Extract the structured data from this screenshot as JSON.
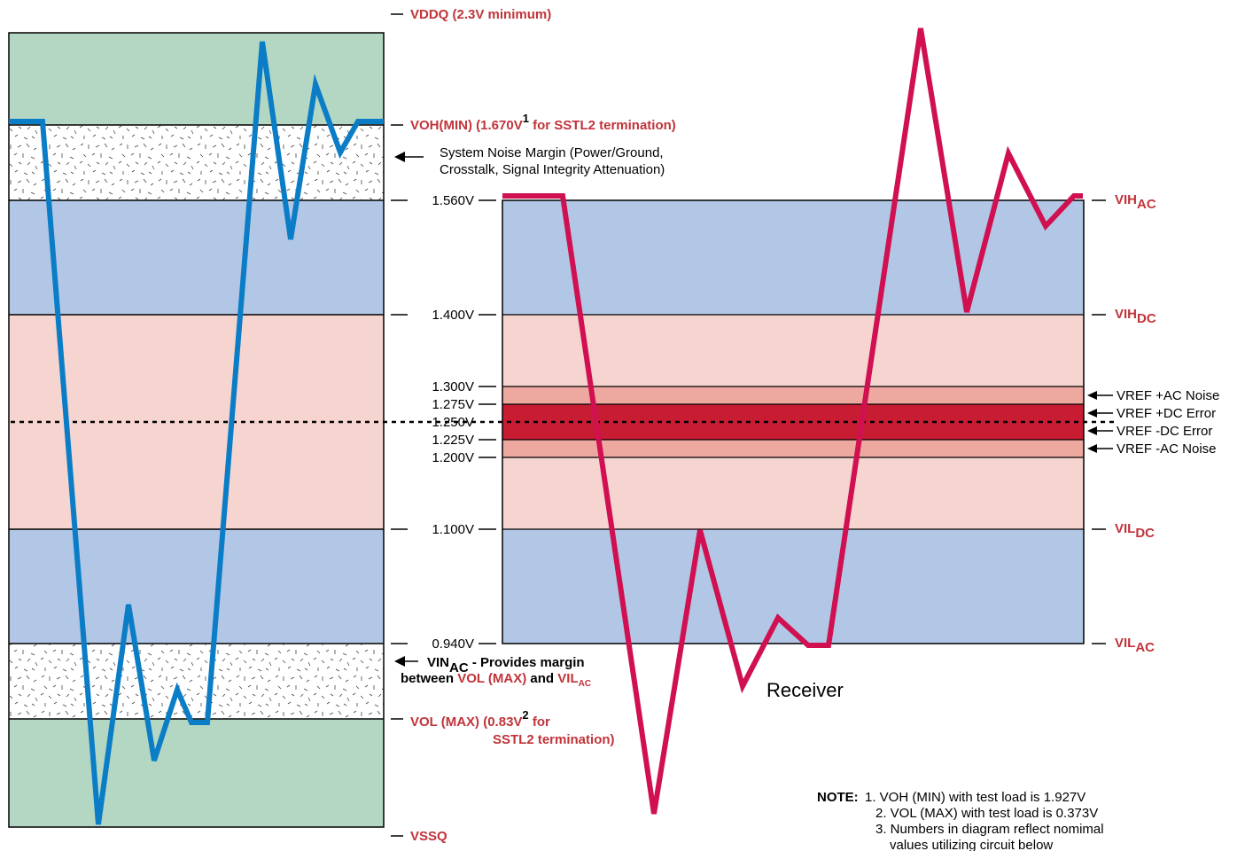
{
  "colors": {
    "green": "#b3d7c3",
    "blue": "#b2c7e5",
    "pink": "#f6d4cf",
    "ac_noise": "#eda99f",
    "dc_error": "#c81c33",
    "driver_wave": "#0a7dc6",
    "receiver_wave": "#d01050",
    "label_red": "#c0343a"
  },
  "voltage_ticks": [
    "1.560V",
    "1.400V",
    "1.300V",
    "1.275V",
    "1.250V",
    "1.225V",
    "1.200V",
    "1.100V",
    "0.940V"
  ],
  "driver_labels": {
    "vddq_main": "VDDQ",
    "vddq_rest": " (2.3V minimum)",
    "voh_main": "VOH(MIN) (1.670V",
    "voh_sup": "1",
    "voh_rest": " for SSTL2 termination)",
    "noise_margin_line1": "System Noise Margin (Power/Ground,",
    "noise_margin_line2": "Crosstalk, Signal Integrity Attenuation)",
    "vin_main": "VIN",
    "vin_sub": "AC",
    "vin_rest": " - Provides margin",
    "between": "between ",
    "vol_max": "VOL (MAX)",
    "and": " and ",
    "vil_main": "VIL",
    "vil_sub": "AC",
    "vol_main": "VOL  (MAX) (0.83V",
    "vol_sup": "2",
    "vol_rest": " for",
    "vol_line2": "SSTL2 termination)",
    "vssq": "VSSQ"
  },
  "receiver_labels": {
    "vih_ac_main": "VIH",
    "vih_ac_sub": "AC",
    "vih_dc_main": "VIH",
    "vih_dc_sub": "DC",
    "vref_ac_noise_pos": "VREF +AC Noise",
    "vref_dc_error_pos": "VREF +DC Error",
    "vref_dc_error_neg": "VREF -DC Error",
    "vref_ac_noise_neg": "VREF -AC Noise",
    "vil_dc_main": "VIL",
    "vil_dc_sub": "DC",
    "vil_ac_main": "VIL",
    "vil_ac_sub": "AC",
    "receiver": "Receiver"
  },
  "note": {
    "title": "NOTE:",
    "line1": "1. VOH (MIN) with test load is 1.927V",
    "line2": "2. VOL (MAX) with test load is 0.373V",
    "line3": "3. Numbers in diagram reflect nomimal",
    "line4": "values utilizing circuit below"
  }
}
